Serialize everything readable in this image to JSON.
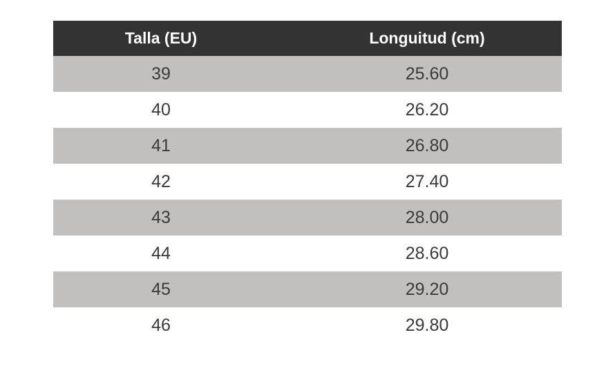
{
  "table": {
    "header": [
      "Talla (EU)",
      "Longuitud (cm)"
    ],
    "rows": [
      [
        39,
        "25.60"
      ],
      [
        40,
        "26.20"
      ],
      [
        41,
        "26.80"
      ],
      [
        42,
        "27.40"
      ],
      [
        43,
        "28.00"
      ],
      [
        44,
        "28.60"
      ],
      [
        45,
        "29.20"
      ],
      [
        46,
        "29.80"
      ]
    ]
  }
}
